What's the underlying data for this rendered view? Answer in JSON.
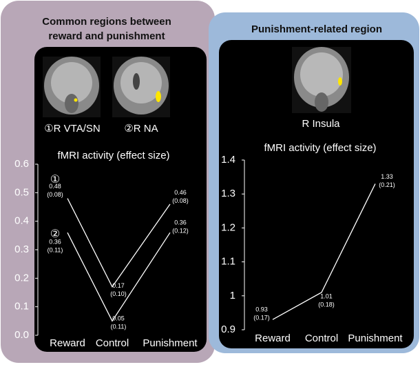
{
  "panels": [
    {
      "heading_lines": [
        "Common regions between",
        "reward and punishment"
      ],
      "image_labels": [
        "①R VTA/SN",
        "②R NA"
      ]
    },
    {
      "heading_lines": [
        "Punishment-related region"
      ],
      "image_labels": [
        "R Insula"
      ]
    }
  ],
  "chart_data": [
    {
      "type": "line",
      "title": "fMRI activity (effect size)",
      "categories": [
        "Reward",
        "Control",
        "Punishment"
      ],
      "series": [
        {
          "name": "①",
          "color": "#ffffff",
          "values": [
            0.48,
            0.17,
            0.46
          ],
          "se_labels": [
            "(0.08)",
            "(0.10)",
            "(0.08)"
          ]
        },
        {
          "name": "②",
          "color": "#ffffff",
          "values": [
            0.36,
            0.05,
            0.36
          ],
          "se_labels": [
            "(0.11)",
            "(0.11)",
            "(0.12)"
          ]
        }
      ],
      "ylim": [
        0,
        0.6
      ],
      "yticks": [
        {
          "value": 0,
          "label": "0.0"
        },
        0.1,
        0.2,
        0.3,
        0.4,
        0.5,
        0.6
      ]
    },
    {
      "type": "line",
      "title": "fMRI activity (effect size)",
      "categories": [
        "Reward",
        "Control",
        "Punishment"
      ],
      "series": [
        {
          "color": "#ffffff",
          "values": [
            0.93,
            1.01,
            1.33
          ],
          "se_labels": [
            "(0.17)",
            "(0.18)",
            "(0.21)"
          ]
        }
      ],
      "ylim": [
        0.9,
        1.4
      ],
      "yticks": [
        0.9,
        1,
        1.1,
        1.2,
        1.3,
        1.4
      ]
    }
  ]
}
